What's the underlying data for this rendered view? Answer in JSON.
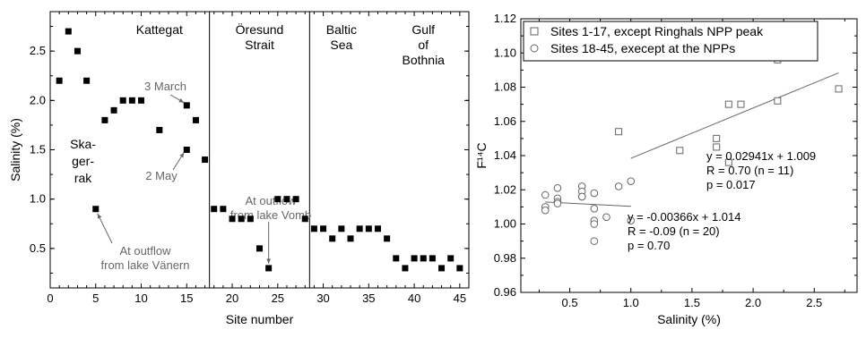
{
  "chart_data": [
    {
      "type": "scatter",
      "title": "",
      "xlabel": "Site number",
      "ylabel": "Salinity (%)",
      "xlim": [
        0,
        46
      ],
      "ylim": [
        0.1,
        2.9
      ],
      "xticks": [
        "0",
        "5",
        "10",
        "15",
        "20",
        "25",
        "30",
        "35",
        "40",
        "45"
      ],
      "yticks": [
        "0.5",
        "1.0",
        "1.5",
        "2.0",
        "2.5"
      ],
      "region_dividers": [
        17.5,
        28.5
      ],
      "regions": [
        {
          "lines": [
            "Kattegat"
          ]
        },
        {
          "lines": [
            "Öresund",
            "Strait"
          ]
        },
        {
          "lines": [
            "Baltic",
            "Sea"
          ]
        },
        {
          "lines": [
            "Gulf",
            "of",
            "Bothnia"
          ]
        }
      ],
      "region_label_extra": {
        "lines": [
          "Ska-",
          "ger-",
          "rak"
        ]
      },
      "annotations": [
        {
          "text": "3 March"
        },
        {
          "text": "2 May"
        },
        {
          "lines": [
            "At outflow",
            "from lake Vomb"
          ]
        },
        {
          "lines": [
            "At outflow",
            "from lake Vänern"
          ]
        }
      ],
      "series": [
        {
          "marker": "filled-square",
          "color": "#000000",
          "points": [
            [
              1,
              2.2
            ],
            [
              2,
              2.7
            ],
            [
              3,
              2.5
            ],
            [
              4,
              2.2
            ],
            [
              5,
              0.9
            ],
            [
              6,
              1.8
            ],
            [
              7,
              1.9
            ],
            [
              8,
              2.0
            ],
            [
              9,
              2.0
            ],
            [
              10,
              2.0
            ],
            [
              12,
              1.7
            ],
            [
              15,
              1.95
            ],
            [
              15,
              1.5
            ],
            [
              16,
              1.8
            ],
            [
              17,
              1.4
            ],
            [
              18,
              0.9
            ],
            [
              19,
              0.9
            ],
            [
              20,
              0.8
            ],
            [
              21,
              0.8
            ],
            [
              22,
              0.8
            ],
            [
              23,
              0.5
            ],
            [
              24,
              0.3
            ],
            [
              25,
              1.0
            ],
            [
              26,
              1.0
            ],
            [
              27,
              1.0
            ],
            [
              28,
              0.8
            ],
            [
              29,
              0.7
            ],
            [
              30,
              0.7
            ],
            [
              31,
              0.6
            ],
            [
              32,
              0.7
            ],
            [
              33,
              0.6
            ],
            [
              34,
              0.7
            ],
            [
              35,
              0.7
            ],
            [
              36,
              0.7
            ],
            [
              37,
              0.6
            ],
            [
              38,
              0.4
            ],
            [
              39,
              0.3
            ],
            [
              40,
              0.4
            ],
            [
              41,
              0.4
            ],
            [
              42,
              0.4
            ],
            [
              43,
              0.3
            ],
            [
              44,
              0.4
            ],
            [
              45,
              0.3
            ]
          ]
        }
      ]
    },
    {
      "type": "scatter",
      "title": "",
      "xlabel": "Salinity (%)",
      "ylabel": "F¹⁴C",
      "xlim": [
        0.1,
        2.85
      ],
      "ylim": [
        0.96,
        1.12
      ],
      "xticks": [
        "0.5",
        "1.0",
        "1.5",
        "2.0",
        "2.5"
      ],
      "yticks": [
        "0.96",
        "0.98",
        "1.00",
        "1.02",
        "1.04",
        "1.06",
        "1.08",
        "1.10",
        "1.12"
      ],
      "legend_position": "top-left",
      "series": [
        {
          "name": "Sites 1-17, except Ringhals NPP peak",
          "marker": "open-square",
          "color": "#666666",
          "points": [
            [
              0.9,
              1.054
            ],
            [
              1.4,
              1.043
            ],
            [
              1.7,
              1.05
            ],
            [
              1.7,
              1.045
            ],
            [
              1.8,
              1.07
            ],
            [
              1.8,
              1.036
            ],
            [
              1.9,
              1.07
            ],
            [
              2.2,
              1.096
            ],
            [
              2.2,
              1.072
            ],
            [
              2.5,
              1.099
            ],
            [
              2.7,
              1.079
            ]
          ],
          "fit": {
            "x_range": [
              1.0,
              2.7
            ],
            "slope": 0.02941,
            "intercept": 1.009,
            "lines": [
              "y = 0.02941x + 1.009",
              "R = 0.70 (n = 11)",
              "p = 0.017"
            ]
          }
        },
        {
          "name": "Sites 18-45, execept at the NPPs",
          "marker": "open-circle",
          "color": "#666666",
          "points": [
            [
              0.3,
              1.017
            ],
            [
              0.3,
              1.01
            ],
            [
              0.3,
              1.008
            ],
            [
              0.4,
              1.021
            ],
            [
              0.4,
              1.015
            ],
            [
              0.4,
              1.013
            ],
            [
              0.4,
              1.012
            ],
            [
              0.6,
              1.022
            ],
            [
              0.6,
              1.019
            ],
            [
              0.6,
              1.016
            ],
            [
              0.7,
              1.018
            ],
            [
              0.7,
              1.009
            ],
            [
              0.7,
              1.002
            ],
            [
              0.7,
              1.0
            ],
            [
              0.7,
              0.99
            ],
            [
              0.8,
              1.004
            ],
            [
              0.9,
              1.022
            ],
            [
              1.0,
              1.025
            ],
            [
              1.0,
              1.002
            ],
            [
              0.6,
              1.016
            ]
          ],
          "fit": {
            "x_range": [
              0.3,
              1.0
            ],
            "slope": -0.00366,
            "intercept": 1.014,
            "lines": [
              "y = -0.00366x + 1.014",
              "R = -0.09 (n = 20)",
              "p = 0.70"
            ]
          }
        }
      ]
    }
  ]
}
